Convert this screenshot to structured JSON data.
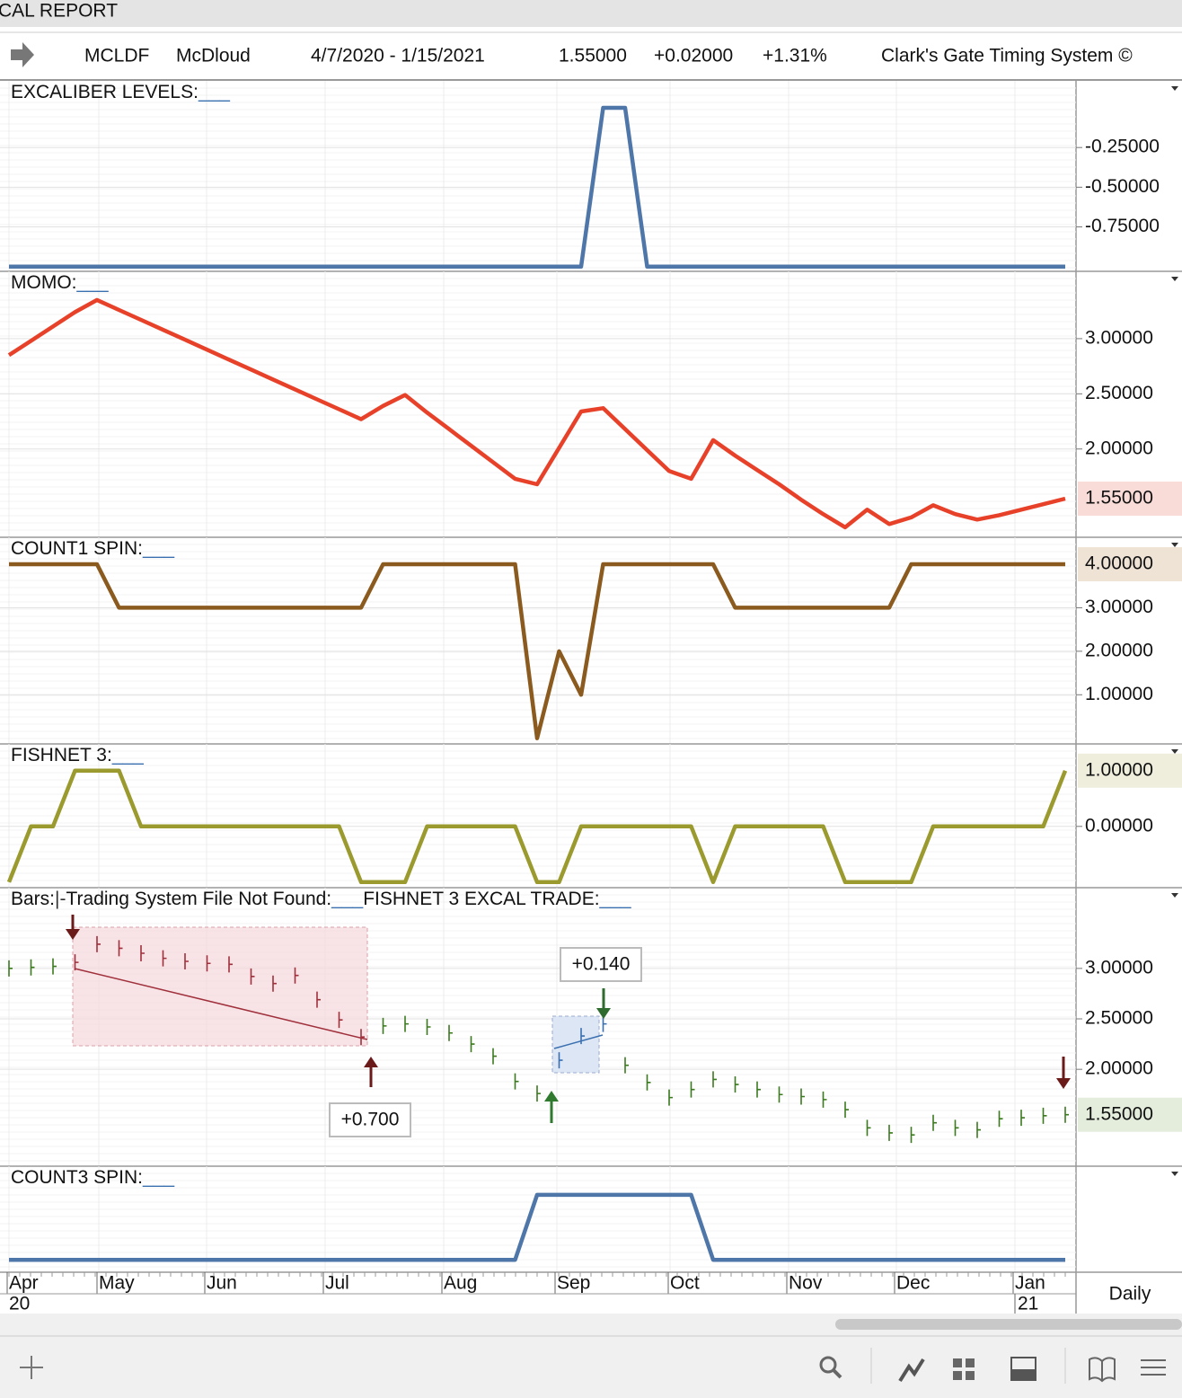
{
  "header": {
    "window_title": "CAL REPORT",
    "symbol": "MCLDF",
    "name": "McDloud",
    "range": "4/7/2020 - 1/15/2021",
    "price": "1.55000",
    "change": "+0.02000",
    "percent": "+1.31%",
    "system": "Clark's Gate Timing System ©"
  },
  "panels": [
    {
      "type": "line",
      "titles": [
        [
          "EXCALIBER LEVELS:",
          "___"
        ]
      ],
      "color": "#4f76a8",
      "ylim": [
        -1.03,
        0.17
      ],
      "yticks": [
        {
          "value": -0.25,
          "label": "-0.25000"
        },
        {
          "value": -0.5,
          "label": "-0.50000"
        },
        {
          "value": -0.75,
          "label": "-0.75000"
        }
      ],
      "values": [
        -1,
        -1,
        -1,
        -1,
        -1,
        -1,
        -1,
        -1,
        -1,
        -1,
        -1,
        -1,
        -1,
        -1,
        -1,
        -1,
        -1,
        -1,
        -1,
        -1,
        -1,
        -1,
        -1,
        -1,
        -1,
        -1,
        -1,
        0,
        0,
        -1,
        -1,
        -1,
        -1,
        -1,
        -1,
        -1,
        -1,
        -1,
        -1,
        -1,
        -1,
        -1,
        -1,
        -1,
        -1,
        -1,
        -1,
        -1,
        -1
      ]
    },
    {
      "type": "line",
      "titles": [
        [
          "MOMO:",
          "___"
        ]
      ],
      "color": "#e8412a",
      "ylim": [
        1.2,
        3.61
      ],
      "yticks": [
        {
          "value": 3.0,
          "label": "3.00000"
        },
        {
          "value": 2.5,
          "label": "2.50000"
        },
        {
          "value": 2.0,
          "label": "2.00000"
        }
      ],
      "last": {
        "value": 1.55,
        "label": "1.55000",
        "bg": "#f9dcd8",
        "fg": "#b03a2e"
      },
      "values": [
        2.85,
        2.98,
        3.11,
        3.24,
        3.35,
        3.26,
        3.17,
        3.08,
        2.99,
        2.9,
        2.81,
        2.72,
        2.63,
        2.54,
        2.45,
        2.36,
        2.27,
        2.39,
        2.49,
        2.33,
        2.18,
        2.03,
        1.88,
        1.73,
        1.68,
        2.01,
        2.34,
        2.37,
        2.18,
        1.99,
        1.8,
        1.73,
        2.08,
        1.94,
        1.81,
        1.68,
        1.54,
        1.41,
        1.29,
        1.45,
        1.32,
        1.38,
        1.49,
        1.41,
        1.36,
        1.4,
        1.45,
        1.5,
        1.55
      ]
    },
    {
      "type": "line",
      "titles": [
        [
          "COUNT1 SPIN:",
          "___"
        ]
      ],
      "color": "#8b5a1e",
      "ylim": [
        -0.13,
        4.62
      ],
      "yticks": [
        {
          "value": 3,
          "label": "3.00000"
        },
        {
          "value": 2,
          "label": "2.00000"
        },
        {
          "value": 1,
          "label": "1.00000"
        }
      ],
      "last": {
        "value": 4,
        "label": "4.00000",
        "bg": "#efe3d6",
        "fg": "#6b4514"
      },
      "values": [
        4,
        4,
        4,
        4,
        4,
        3,
        3,
        3,
        3,
        3,
        3,
        3,
        3,
        3,
        3,
        3,
        3,
        4,
        4,
        4,
        4,
        4,
        4,
        4,
        0,
        2,
        1,
        4,
        4,
        4,
        4,
        4,
        4,
        3,
        3,
        3,
        3,
        3,
        3,
        3,
        3,
        4,
        4,
        4,
        4,
        4,
        4,
        4,
        4
      ]
    },
    {
      "type": "line",
      "titles": [
        [
          "FISHNET 3:",
          "___"
        ]
      ],
      "color": "#9a9a2e",
      "ylim": [
        -1.1,
        1.48
      ],
      "yticks": [
        {
          "value": 0,
          "label": "0.00000"
        }
      ],
      "last": {
        "value": 1,
        "label": "1.00000",
        "bg": "#efeedd",
        "fg": "#6d6d1a"
      },
      "values": [
        -1,
        0,
        0,
        1,
        1,
        1,
        0,
        0,
        0,
        0,
        0,
        0,
        0,
        0,
        0,
        0,
        -1,
        -1,
        -1,
        0,
        0,
        0,
        0,
        0,
        -1,
        -1,
        0,
        0,
        0,
        0,
        0,
        0,
        -1,
        0,
        0,
        0,
        0,
        0,
        -1,
        -1,
        -1,
        -1,
        0,
        0,
        0,
        0,
        0,
        0,
        1
      ]
    },
    {
      "type": "bars",
      "titles": [
        [
          "Bars:",
          "|-"
        ],
        [
          "Trading System File Not Found:",
          "___"
        ],
        [
          "FISHNET 3 EXCAL TRADE:",
          "___"
        ]
      ],
      "color": "#3b7a1f",
      "down_color": "#a0303c",
      "ylim": [
        1.04,
        3.8
      ],
      "yticks": [
        {
          "value": 3.0,
          "label": "3.00000"
        },
        {
          "value": 2.5,
          "label": "2.50000"
        },
        {
          "value": 2.0,
          "label": "2.00000"
        }
      ],
      "last": {
        "value": 1.55,
        "label": "1.55000",
        "bg": "#e4eddc",
        "fg": "#3b6a22"
      },
      "annotations": [
        {
          "text": "+0.700",
          "color": "#8b1a1a"
        },
        {
          "text": "+0.140",
          "color": "#3a8a3a"
        }
      ],
      "values": [
        3.0,
        3.01,
        3.02,
        3.06,
        3.24,
        3.2,
        3.15,
        3.1,
        3.07,
        3.05,
        3.04,
        2.92,
        2.85,
        2.93,
        2.69,
        2.49,
        2.32,
        2.43,
        2.45,
        2.42,
        2.36,
        2.25,
        2.13,
        1.88,
        1.76,
        2.09,
        2.33,
        2.45,
        2.04,
        1.87,
        1.72,
        1.8,
        1.9,
        1.85,
        1.8,
        1.75,
        1.73,
        1.7,
        1.6,
        1.42,
        1.37,
        1.35,
        1.47,
        1.42,
        1.4,
        1.51,
        1.52,
        1.54,
        1.55
      ]
    },
    {
      "type": "line",
      "titles": [
        [
          "COUNT3 SPIN:",
          "___"
        ]
      ],
      "color": "#4f76a8",
      "ylim": [
        -0.19,
        1.44
      ],
      "yticks": [],
      "values": [
        0,
        0,
        0,
        0,
        0,
        0,
        0,
        0,
        0,
        0,
        0,
        0,
        0,
        0,
        0,
        0,
        0,
        0,
        0,
        0,
        0,
        0,
        0,
        0,
        1,
        1,
        1,
        1,
        1,
        1,
        1,
        1,
        0,
        0,
        0,
        0,
        0,
        0,
        0,
        0,
        0,
        0,
        0,
        0,
        0,
        0,
        0,
        0,
        0
      ]
    }
  ],
  "x_axis": {
    "months": [
      "Apr",
      "May",
      "Jun",
      "Jul",
      "Aug",
      "Sep",
      "Oct",
      "Nov",
      "Dec",
      "Jan"
    ],
    "years": [
      "20",
      "21"
    ],
    "period": "Daily"
  }
}
